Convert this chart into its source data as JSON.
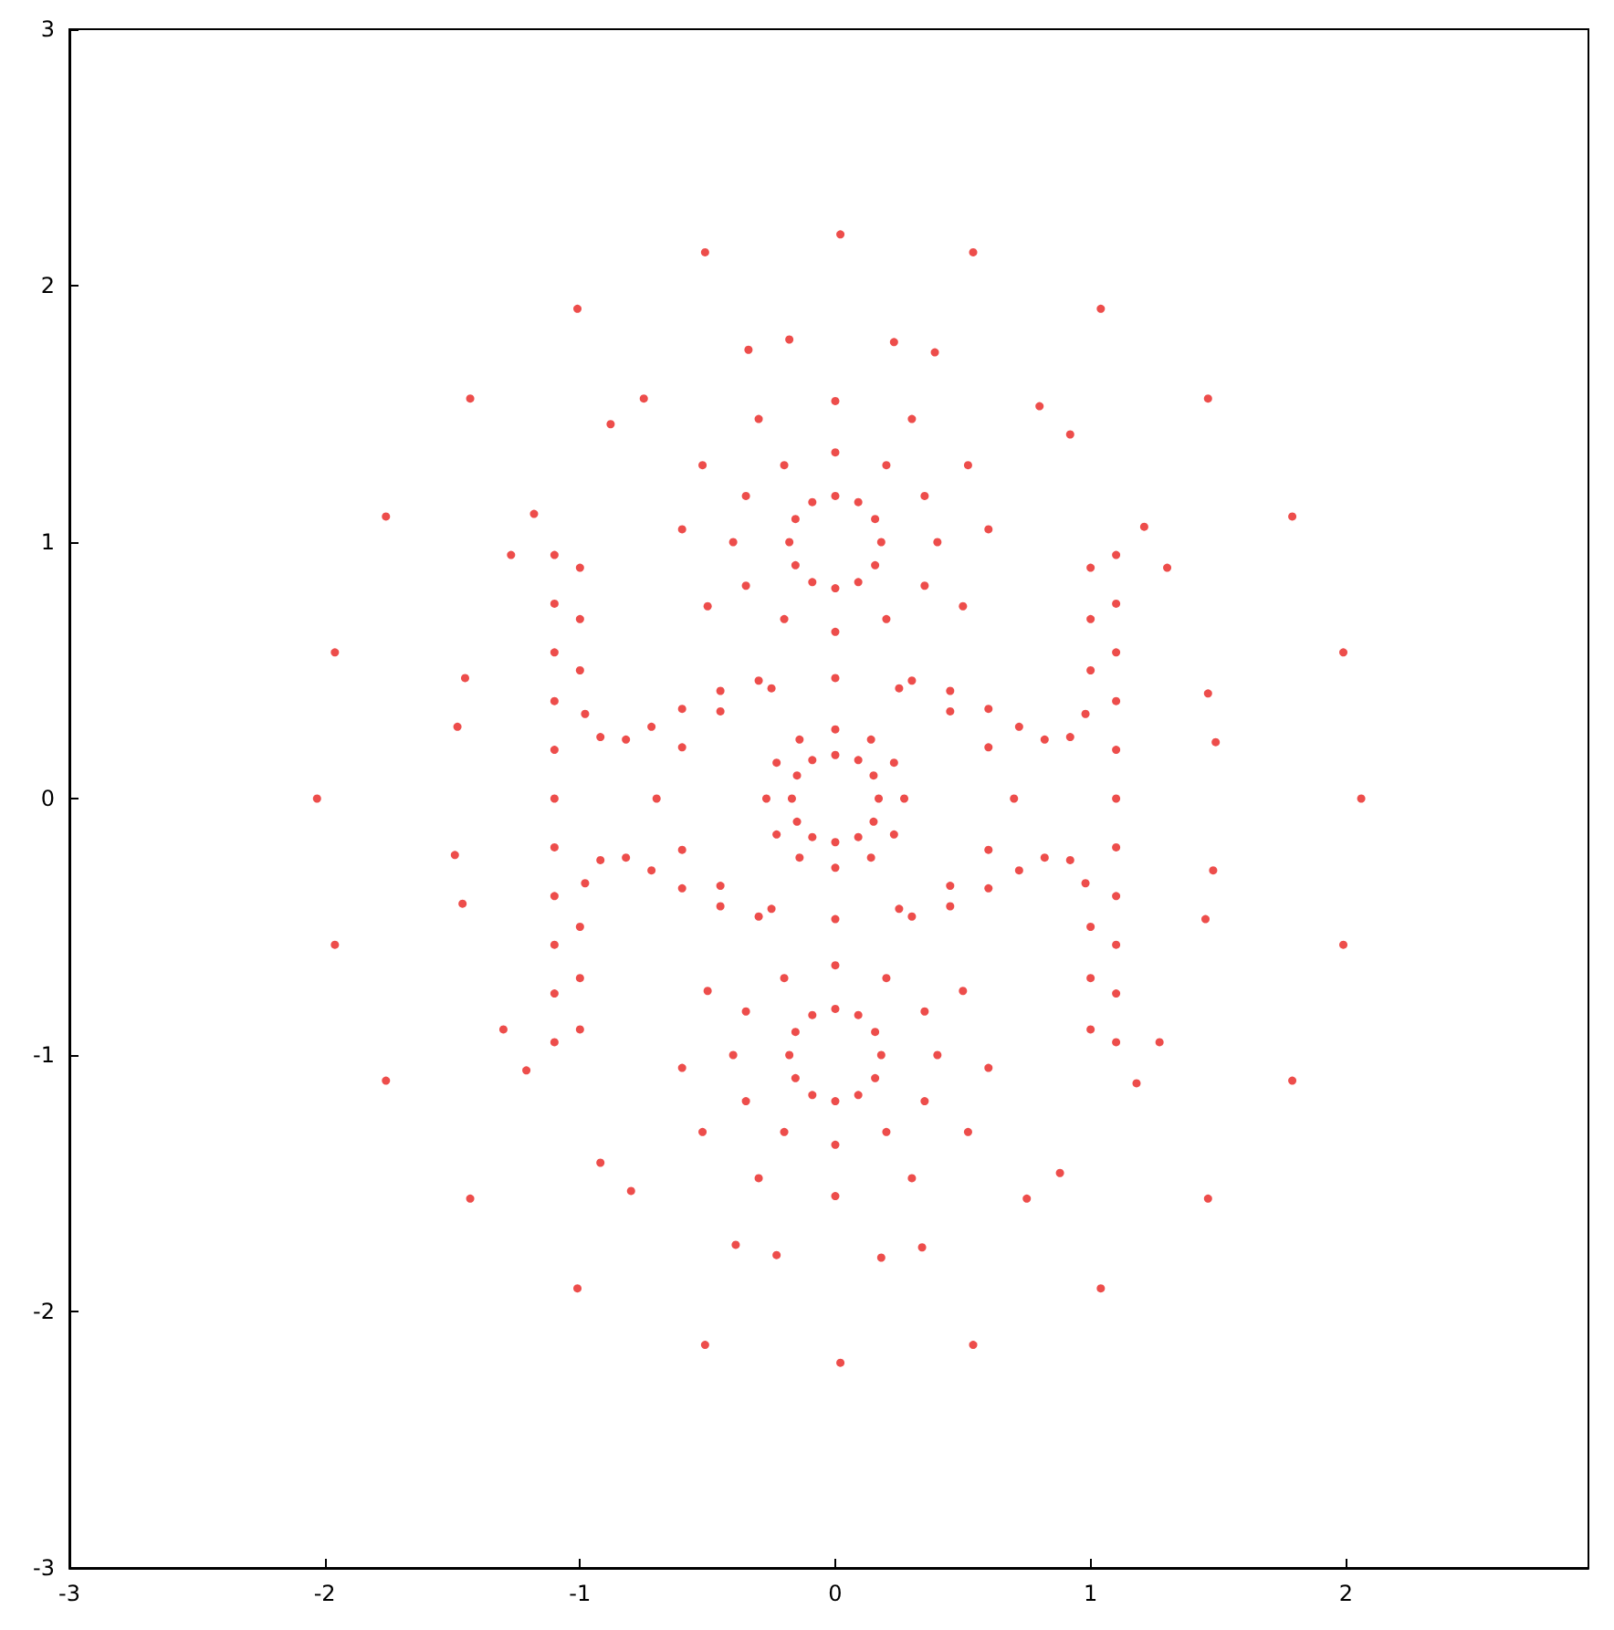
{
  "chart_data": {
    "type": "scatter",
    "marker": "circle",
    "grid": false,
    "xlim": [
      -3,
      2.95
    ],
    "xticks": [
      -3,
      -2,
      -1,
      0,
      1,
      2
    ],
    "ylim": [
      -3,
      3
    ],
    "yticks": [
      -3,
      -2,
      -1,
      0,
      1,
      2,
      3
    ],
    "series": [
      {
        "color": "#e8201e",
        "x": [
          2.06,
          1.99,
          1.79,
          1.46,
          1.04,
          0.54,
          0.02,
          -0.51,
          -1.01,
          -1.43,
          -1.76,
          -1.96,
          -2.03,
          -1.96,
          -1.76,
          -1.43,
          -1.01,
          -0.51,
          0.02,
          0.54,
          1.04,
          1.46,
          1.79,
          1.99
        ],
        "values": [
          0,
          0.57,
          1.1,
          1.56,
          1.91,
          2.13,
          2.2,
          2.13,
          1.91,
          1.56,
          1.1,
          0.57,
          0,
          -0.57,
          -1.1,
          -1.56,
          -1.91,
          -2.13,
          -2.2,
          -2.13,
          -1.91,
          -1.56,
          -1.1,
          -0.57
        ]
      },
      {
        "color": "#e8201e",
        "x": [
          1.49,
          1.46,
          1.3,
          1.21,
          0.92,
          0.8,
          0.39,
          0.23,
          -0.18,
          -0.34,
          -0.75,
          -0.88,
          -1.18,
          -1.27,
          -1.45,
          -1.48,
          -1.49,
          -1.46,
          -1.3,
          -1.21,
          -0.92,
          -0.8,
          -0.39,
          -0.23,
          0.18,
          0.34,
          0.75,
          0.88,
          1.18,
          1.27,
          1.45,
          1.48
        ],
        "values": [
          0.22,
          0.41,
          0.9,
          1.06,
          1.42,
          1.53,
          1.74,
          1.78,
          1.79,
          1.75,
          1.56,
          1.46,
          1.11,
          0.95,
          0.47,
          0.28,
          -0.22,
          -0.41,
          -0.9,
          -1.06,
          -1.42,
          -1.53,
          -1.74,
          -1.78,
          -1.79,
          -1.75,
          -1.56,
          -1.46,
          -1.11,
          -0.95,
          -0.47,
          -0.28
        ]
      },
      {
        "color": "#e8201e",
        "x": [
          0.18,
          0.156,
          0.09,
          0,
          -0.09,
          -0.156,
          -0.18,
          -0.156,
          -0.09,
          0,
          0.09,
          0.156
        ],
        "values": [
          1,
          1.09,
          1.156,
          1.18,
          1.156,
          1.09,
          1,
          0.91,
          0.844,
          0.82,
          0.844,
          0.91
        ]
      },
      {
        "color": "#e8201e",
        "x": [
          0.18,
          0.156,
          0.09,
          0,
          -0.09,
          -0.156,
          -0.18,
          -0.156,
          -0.09,
          0,
          0.09,
          0.156
        ],
        "values": [
          -1,
          -0.91,
          -0.844,
          -0.82,
          -0.844,
          -0.91,
          -1,
          -1.09,
          -1.156,
          -1.18,
          -1.156,
          -1.09
        ]
      },
      {
        "color": "#e8201e",
        "x": [
          0.4,
          0.35,
          0.2,
          0,
          -0.2,
          -0.35,
          -0.4,
          -0.35,
          -0.2,
          0,
          0.2,
          0.35
        ],
        "values": [
          1,
          1.18,
          1.3,
          1.35,
          1.3,
          1.18,
          1,
          0.83,
          0.7,
          0.65,
          0.7,
          0.83
        ]
      },
      {
        "color": "#e8201e",
        "x": [
          0.4,
          0.35,
          0.2,
          0,
          -0.2,
          -0.35,
          -0.4,
          -0.35,
          -0.2,
          0,
          0.2,
          0.35
        ],
        "values": [
          -1,
          -1.18,
          -1.3,
          -1.35,
          -1.3,
          -1.18,
          -1,
          -0.83,
          -0.7,
          -0.65,
          -0.7,
          -0.83
        ]
      },
      {
        "color": "#e8201e",
        "x": [
          0.6,
          0.52,
          0.3,
          0,
          -0.3,
          -0.52,
          -0.6,
          -0.5,
          0.5
        ],
        "values": [
          1.05,
          1.3,
          1.48,
          1.55,
          1.48,
          1.3,
          1.05,
          0.75,
          0.75
        ]
      },
      {
        "color": "#e8201e",
        "x": [
          0.6,
          0.52,
          0.3,
          0,
          -0.3,
          -0.52,
          -0.6,
          -0.5,
          0.5
        ],
        "values": [
          -1.05,
          -1.3,
          -1.48,
          -1.55,
          -1.48,
          -1.3,
          -1.05,
          -0.75,
          -0.75
        ]
      },
      {
        "color": "#e8201e",
        "x": [
          0.17,
          0.15,
          0.09,
          0,
          -0.09,
          -0.15,
          -0.17,
          -0.15,
          -0.09,
          0,
          0.09,
          0.15
        ],
        "values": [
          0,
          0.09,
          0.15,
          0.17,
          0.15,
          0.09,
          0,
          -0.09,
          -0.15,
          -0.17,
          -0.15,
          -0.09
        ]
      },
      {
        "color": "#e8201e",
        "x": [
          0.27,
          0.23,
          0.14,
          0,
          -0.14,
          -0.23,
          -0.27,
          -0.23,
          -0.14,
          0,
          0.14,
          0.23
        ],
        "values": [
          0,
          0.14,
          0.23,
          0.27,
          0.23,
          0.14,
          0,
          -0.14,
          -0.23,
          -0.27,
          -0.23,
          -0.14
        ]
      },
      {
        "color": "#e8201e",
        "x": [
          0.7,
          0.6,
          0.45,
          0.25,
          0,
          -0.25,
          -0.45,
          -0.6,
          -0.7,
          -0.6,
          -0.45,
          -0.25,
          0,
          0.25,
          0.45,
          0.6
        ],
        "values": [
          0,
          0.2,
          0.34,
          0.43,
          0.47,
          0.43,
          0.34,
          0.2,
          0,
          -0.2,
          -0.34,
          -0.43,
          -0.47,
          -0.43,
          -0.34,
          -0.2
        ]
      },
      {
        "color": "#e8201e",
        "x": [
          -1.1,
          -1.1,
          -1.1,
          -1.1,
          -1.1,
          -1.1,
          -1.1,
          -1.1,
          -1.1,
          -1.1,
          -1.1,
          1.1,
          1.1,
          1.1,
          1.1,
          1.1,
          1.1,
          1.1,
          1.1,
          1.1,
          1.1,
          1.1
        ],
        "values": [
          0.95,
          0.76,
          0.57,
          0.38,
          0.19,
          0,
          -0.19,
          -0.38,
          -0.57,
          -0.76,
          -0.95,
          0.95,
          0.76,
          0.57,
          0.38,
          0.19,
          0,
          -0.19,
          -0.38,
          -0.57,
          -0.76,
          -0.95
        ]
      },
      {
        "color": "#e8201e",
        "x": [
          -1.0,
          -1.0,
          -1.0,
          -0.98,
          -0.92,
          -0.82,
          -0.72,
          -0.6,
          -0.45,
          -0.3,
          1.0,
          1.0,
          1.0,
          0.98,
          0.92,
          0.82,
          0.72,
          0.6,
          0.45,
          0.3
        ],
        "values": [
          0.9,
          0.7,
          0.5,
          0.33,
          0.24,
          0.23,
          0.28,
          0.35,
          0.42,
          0.46,
          0.9,
          0.7,
          0.5,
          0.33,
          0.24,
          0.23,
          0.28,
          0.35,
          0.42,
          0.46
        ]
      },
      {
        "color": "#e8201e",
        "x": [
          -1.0,
          -1.0,
          -1.0,
          -0.98,
          -0.92,
          -0.82,
          -0.72,
          -0.6,
          -0.45,
          -0.3,
          1.0,
          1.0,
          1.0,
          0.98,
          0.92,
          0.82,
          0.72,
          0.6,
          0.45,
          0.3
        ],
        "values": [
          -0.9,
          -0.7,
          -0.5,
          -0.33,
          -0.24,
          -0.23,
          -0.28,
          -0.35,
          -0.42,
          -0.46,
          -0.9,
          -0.7,
          -0.5,
          -0.33,
          -0.24,
          -0.23,
          -0.28,
          -0.35,
          -0.42,
          -0.46
        ]
      }
    ]
  }
}
